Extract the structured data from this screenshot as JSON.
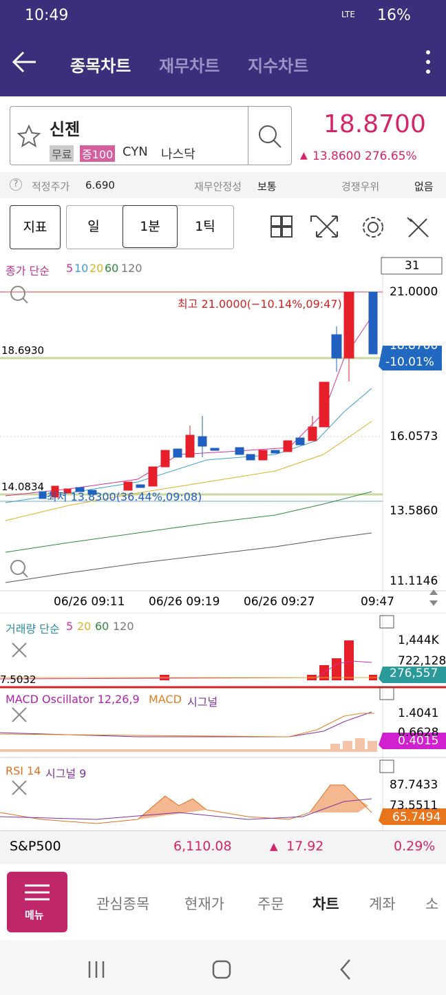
{
  "status": {
    "time": "10:49",
    "network": "LTE",
    "battery": "16%"
  },
  "header": {
    "tabs": [
      "종목차트",
      "재무차트",
      "지수차트"
    ]
  },
  "stock": {
    "name": "신젠",
    "tags": [
      "무료",
      "증100"
    ],
    "symbol": "CYN",
    "market": "나스닥",
    "price": "18.8700",
    "change": "13.8600",
    "change_pct": "276.65%"
  },
  "info": [
    {
      "label": "적정주가",
      "value": "6.690"
    },
    {
      "label": "재무안정성",
      "value": "보통"
    },
    {
      "label": "경쟁우위",
      "value": "없음"
    }
  ],
  "toolbar": [
    "지표",
    "일",
    "1분",
    "1틱"
  ],
  "price_chart": {
    "legend": "종가 단순",
    "periods": [
      "5",
      "10",
      "20",
      "60",
      "120"
    ],
    "count": "31",
    "axis": [
      "21.0000",
      "16.0573",
      "13.5860",
      "11.1146"
    ],
    "left_labels": [
      "18.6930",
      "14.0834"
    ],
    "high_note": "최고 21.0000(−10.14%,09:47)",
    "low_note": "최저 13.8300(36.44%,09:08)",
    "current": "18.8700",
    "current_pct": "-10.01%",
    "x_labels": [
      "06/26 09:11",
      "06/26 09:19",
      "06/26 09:27",
      "09:47"
    ]
  },
  "volume": {
    "legend": "거래량 단순",
    "periods": [
      "5",
      "20",
      "60",
      "120"
    ],
    "axis": [
      "1,444K",
      "722,128"
    ],
    "current": "276,557",
    "left_label": "7.5032"
  },
  "macd": {
    "legend": "MACD Oscillator 12,26,9",
    "line": "MACD",
    "signal": "시그널",
    "axis": [
      "1.4041",
      "0.6628"
    ],
    "current": "0.4015"
  },
  "rsi": {
    "legend": "RSI 14",
    "signal": "시그널 9",
    "axis": [
      "87.7433",
      "73.5511"
    ],
    "current": "65.7494"
  },
  "ticker": {
    "name": "S&P500",
    "value": "6,110.08",
    "change": "17.92",
    "pct": "0.29%"
  },
  "nav": {
    "menu": "메뉴",
    "items": [
      "관심종목",
      "현재가",
      "주문",
      "차트",
      "계좌",
      "소"
    ]
  }
}
